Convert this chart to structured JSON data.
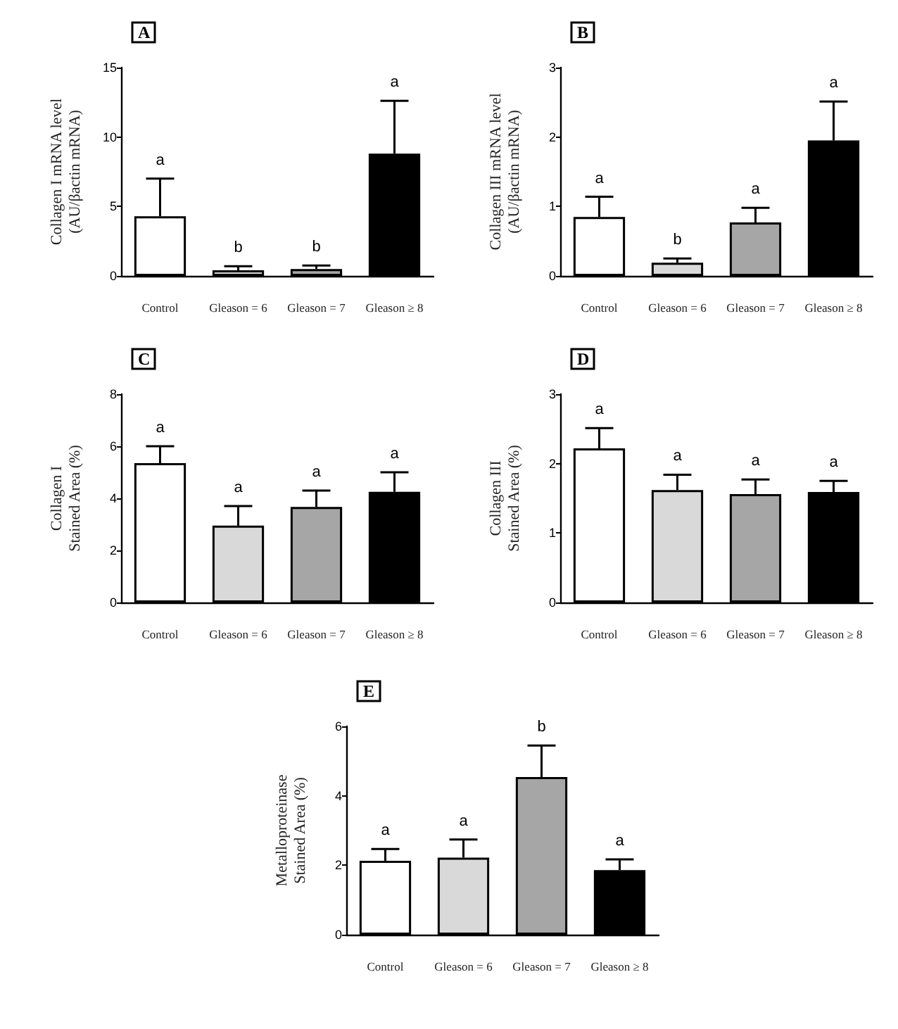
{
  "chart_data": [
    {
      "type": "bar",
      "title": "A",
      "ylabel": "Collagen I mRNA level\n(AU/βactin mRNA)",
      "categories": [
        "Control",
        "Gleason = 6",
        "Gleason = 7",
        "Gleason ≥ 8"
      ],
      "values": [
        4.3,
        0.4,
        0.5,
        8.8
      ],
      "colors": [
        "#ffffff",
        "#d9d9d9",
        "#a6a6a6",
        "#000000"
      ],
      "errors": [
        [
          4.3,
          7.0
        ],
        [
          0.4,
          0.7
        ],
        [
          0.5,
          0.75
        ],
        [
          8.8,
          12.6
        ]
      ],
      "ylim": [
        0,
        15
      ],
      "yticks": [
        0,
        5,
        10,
        15
      ],
      "annotations": [
        "a",
        "b",
        "b",
        "a"
      ]
    },
    {
      "type": "bar",
      "title": "B",
      "ylabel": "Collagen III mRNA level\n(AU/βactin mRNA)",
      "categories": [
        "Control",
        "Gleason = 6",
        "Gleason = 7",
        "Gleason ≥ 8"
      ],
      "values": [
        0.85,
        0.19,
        0.77,
        1.95
      ],
      "colors": [
        "#ffffff",
        "#d9d9d9",
        "#a6a6a6",
        "#000000"
      ],
      "errors": [
        [
          0.85,
          1.14
        ],
        [
          0.19,
          0.25
        ],
        [
          0.77,
          0.98
        ],
        [
          1.95,
          2.51
        ]
      ],
      "ylim": [
        0,
        3
      ],
      "yticks": [
        0,
        1,
        2,
        3
      ],
      "annotations": [
        "a",
        "b",
        "a",
        "a"
      ]
    },
    {
      "type": "bar",
      "title": "C",
      "ylabel": "Collagen I\nStained Area (%)",
      "categories": [
        "Control",
        "Gleason = 6",
        "Gleason = 7",
        "Gleason ≥ 8"
      ],
      "values": [
        5.35,
        2.95,
        3.67,
        4.25
      ],
      "colors": [
        "#ffffff",
        "#d9d9d9",
        "#a6a6a6",
        "#000000"
      ],
      "errors": [
        [
          5.35,
          6.0
        ],
        [
          2.95,
          3.7
        ],
        [
          3.67,
          4.3
        ],
        [
          4.25,
          5.0
        ]
      ],
      "ylim": [
        0,
        8
      ],
      "yticks": [
        0,
        2,
        4,
        6,
        8
      ],
      "annotations": [
        "a",
        "a",
        "a",
        "a"
      ]
    },
    {
      "type": "bar",
      "title": "D",
      "ylabel": "Collagen III\nStained Area (%)",
      "categories": [
        "Control",
        "Gleason = 6",
        "Gleason = 7",
        "Gleason ≥ 8"
      ],
      "values": [
        2.22,
        1.62,
        1.56,
        1.59
      ],
      "colors": [
        "#ffffff",
        "#d9d9d9",
        "#a6a6a6",
        "#000000"
      ],
      "errors": [
        [
          2.22,
          2.51
        ],
        [
          1.62,
          1.84
        ],
        [
          1.56,
          1.77
        ],
        [
          1.59,
          1.75
        ]
      ],
      "ylim": [
        0,
        3
      ],
      "yticks": [
        0,
        1,
        2,
        3
      ],
      "annotations": [
        "a",
        "a",
        "a",
        "a"
      ]
    },
    {
      "type": "bar",
      "title": "E",
      "ylabel": "Metalloproteinase\nStained Area (%)",
      "categories": [
        "Control",
        "Gleason = 6",
        "Gleason = 7",
        "Gleason ≥ 8"
      ],
      "values": [
        2.13,
        2.22,
        4.54,
        1.86
      ],
      "colors": [
        "#ffffff",
        "#d9d9d9",
        "#a6a6a6",
        "#000000"
      ],
      "errors": [
        [
          2.13,
          2.47
        ],
        [
          2.22,
          2.74
        ],
        [
          4.54,
          5.45
        ],
        [
          1.86,
          2.17
        ]
      ],
      "ylim": [
        0,
        6
      ],
      "yticks": [
        0,
        2,
        4,
        6
      ],
      "annotations": [
        "a",
        "a",
        "b",
        "a"
      ]
    }
  ]
}
